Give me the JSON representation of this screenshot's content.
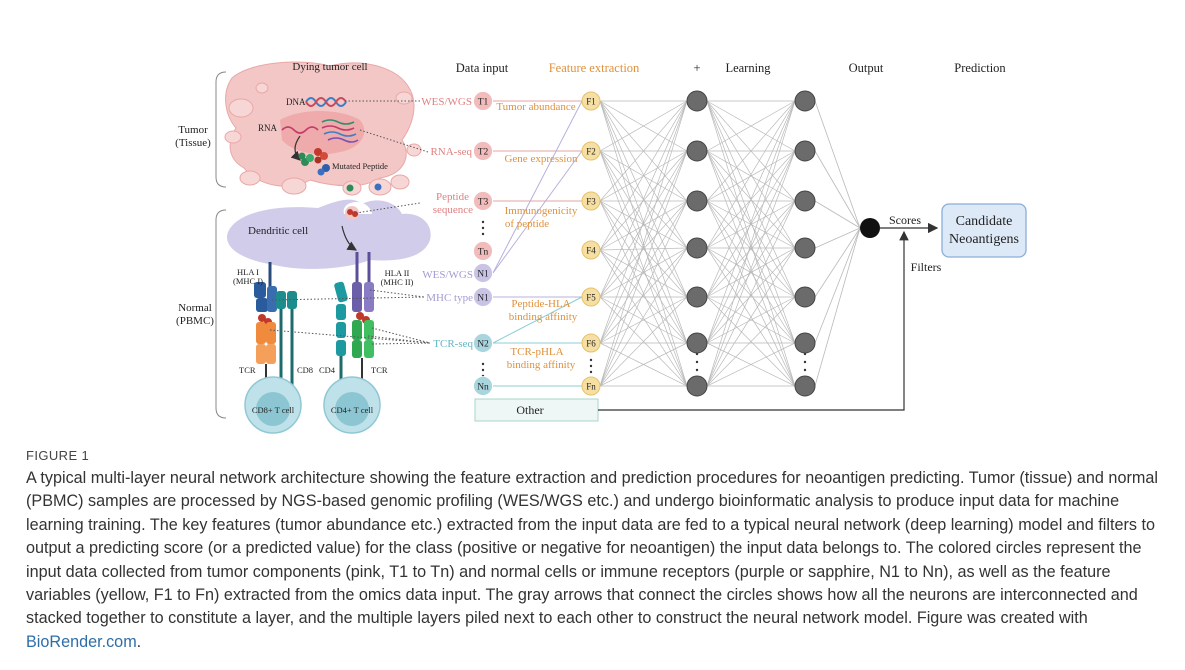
{
  "figure": {
    "headers": {
      "dying_tumor_cell": "Dying tumor cell",
      "data_input": "Data input",
      "feature_extraction": "Feature extraction",
      "plus": "+",
      "learning": "Learning",
      "output": "Output",
      "prediction": "Prediction"
    },
    "groups": {
      "tumor": [
        "Tumor",
        "(Tissue)"
      ],
      "normal": [
        "Normal",
        "(PBMC)"
      ]
    },
    "cell_labels": {
      "dna": "DNA",
      "rna": "RNA",
      "mutated_peptide": "Mutated Peptide",
      "dendritic_cell": "Dendritic cell",
      "hla1": [
        "HLA I",
        "(MHC I)"
      ],
      "hla2": [
        "HLA II",
        "(MHC II)"
      ],
      "tcr_left": "TCR",
      "cd8": "CD8",
      "cd4": "CD4",
      "tcr_right": "TCR",
      "cd8_tcell": "CD8+ T cell",
      "cd4_tcell": "CD4+ T cell"
    },
    "sources": {
      "wes_wgs_tumor": "WES/WGS",
      "rna_seq": "RNA-seq",
      "peptide_sequence": [
        "Peptide",
        "sequence"
      ],
      "wes_wgs_normal": "WES/WGS",
      "mhc_type": "MHC type",
      "tcr_seq": "TCR-seq"
    },
    "inputs": [
      "T1",
      "T2",
      "T3",
      "Tn",
      "N1",
      "N1",
      "N2",
      "Nn"
    ],
    "features": [
      "F1",
      "F2",
      "F3",
      "F4",
      "F5",
      "F6",
      "Fn"
    ],
    "feature_labels": {
      "tumor_abundance": "Tumor abundance",
      "gene_expression": "Gene expression",
      "immunogenicity": [
        "Immunogenicity",
        "of peptide"
      ],
      "peptide_hla": [
        "Peptide-HLA",
        "binding affinity"
      ],
      "tcr_phla": [
        "TCR-pHLA",
        "binding affinity"
      ]
    },
    "other": "Other",
    "scores": "Scores",
    "filters": "Filters",
    "candidate": [
      "Candidate",
      "Neoantigens"
    ],
    "colors": {
      "tumor_pink": "#f2bcbc",
      "normal_purple": "#c9c3e6",
      "sapphire": "#a9d6de",
      "feature_yellow": "#f6dfa2",
      "feature_text": "#e0913a",
      "neuron": "#6b6b6b",
      "candidate_box": "#dde9f7"
    }
  },
  "caption": {
    "label": "FIGURE 1",
    "text": "A typical multi-layer neural network architecture showing the feature extraction and prediction procedures for neoantigen predicting. Tumor (tissue) and normal (PBMC) samples are processed by NGS-based genomic profiling (WES/WGS etc.) and undergo bioinformatic analysis to produce input data for machine learning training. The key features (tumor abundance etc.) extracted from the input data are fed to a typical neural network (deep learning) model and filters to output a predicting score (or a predicted value) for the class (positive or negative for neoantigen) the input data belongs to. The colored circles represent the input data collected from tumor components (pink, T1 to Tn) and normal cells or immune receptors (purple or sapphire, N1 to Nn), as well as the feature variables (yellow, F1 to Fn) extracted from the omics data input. The gray arrows that connect the circles shows how all the neurons are interconnected and stacked together to constitute a layer, and the multiple layers piled next to each other to construct the neural network model. Figure was created with ",
    "link": "BioRender.com",
    "end": "."
  }
}
